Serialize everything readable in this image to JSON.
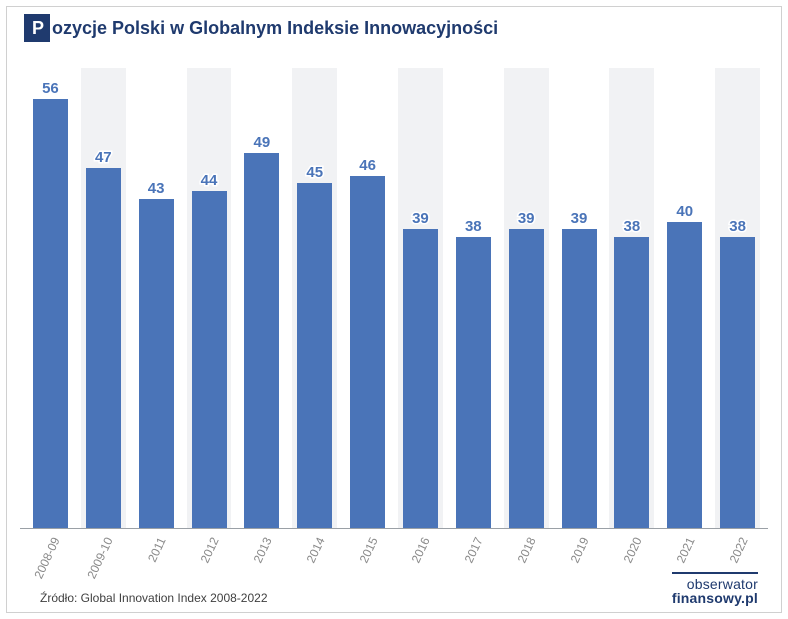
{
  "title_first_letter": "P",
  "title_rest": "ozycje Polski w Globalnym Indeksie Innowacyjności",
  "source_text": "Źródło: Global Innovation Index 2008-2022",
  "brand_top": "obserwator",
  "brand_bottom": "finansowy.pl",
  "chart": {
    "type": "bar",
    "y_max": 60,
    "bar_color": "#4a74b8",
    "value_label_color": "#4a74b8",
    "stripe_even_color": "#f1f2f4",
    "stripe_odd_color": "#ffffff",
    "axis_label_color": "#8a8a8a",
    "categories": [
      "2008-09",
      "2009-10",
      "2011",
      "2012",
      "2013",
      "2014",
      "2015",
      "2016",
      "2017",
      "2018",
      "2019",
      "2020",
      "2021",
      "2022"
    ],
    "values": [
      56,
      47,
      43,
      44,
      49,
      45,
      46,
      39,
      38,
      39,
      39,
      38,
      40,
      38
    ]
  }
}
